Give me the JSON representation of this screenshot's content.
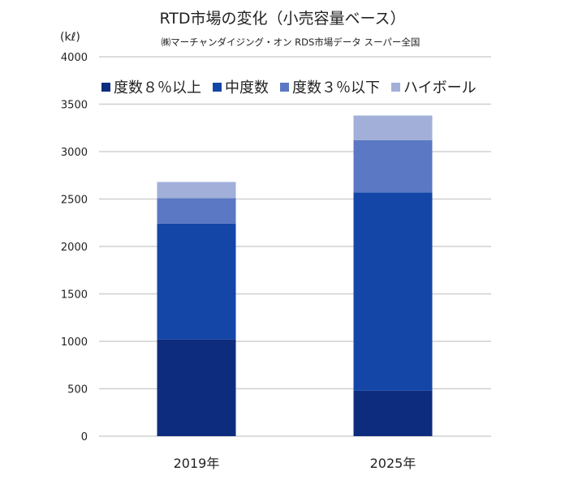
{
  "chart_data": {
    "type": "bar",
    "stacked": true,
    "title": "RTD市場の変化（小売容量ベース）",
    "subtitle": "㈱マーチャンダイジング・オン RDS市場データ スーパー全国",
    "ylabel": "(kℓ)",
    "ylim": [
      0,
      4000
    ],
    "yticks": [
      0,
      500,
      1000,
      1500,
      2000,
      2500,
      3000,
      3500,
      4000
    ],
    "grid": true,
    "legend_position": "top",
    "categories": [
      "2019年",
      "2025年"
    ],
    "series": [
      {
        "name": "度数８％以上",
        "color": "#0e2c7e",
        "values": [
          1020,
          480
        ]
      },
      {
        "name": "中度数",
        "color": "#1446a8",
        "values": [
          1220,
          2090
        ]
      },
      {
        "name": "度数３％以下",
        "color": "#5b78c4",
        "values": [
          270,
          550
        ]
      },
      {
        "name": "ハイボール",
        "color": "#a1afd9",
        "values": [
          170,
          260
        ]
      }
    ]
  }
}
